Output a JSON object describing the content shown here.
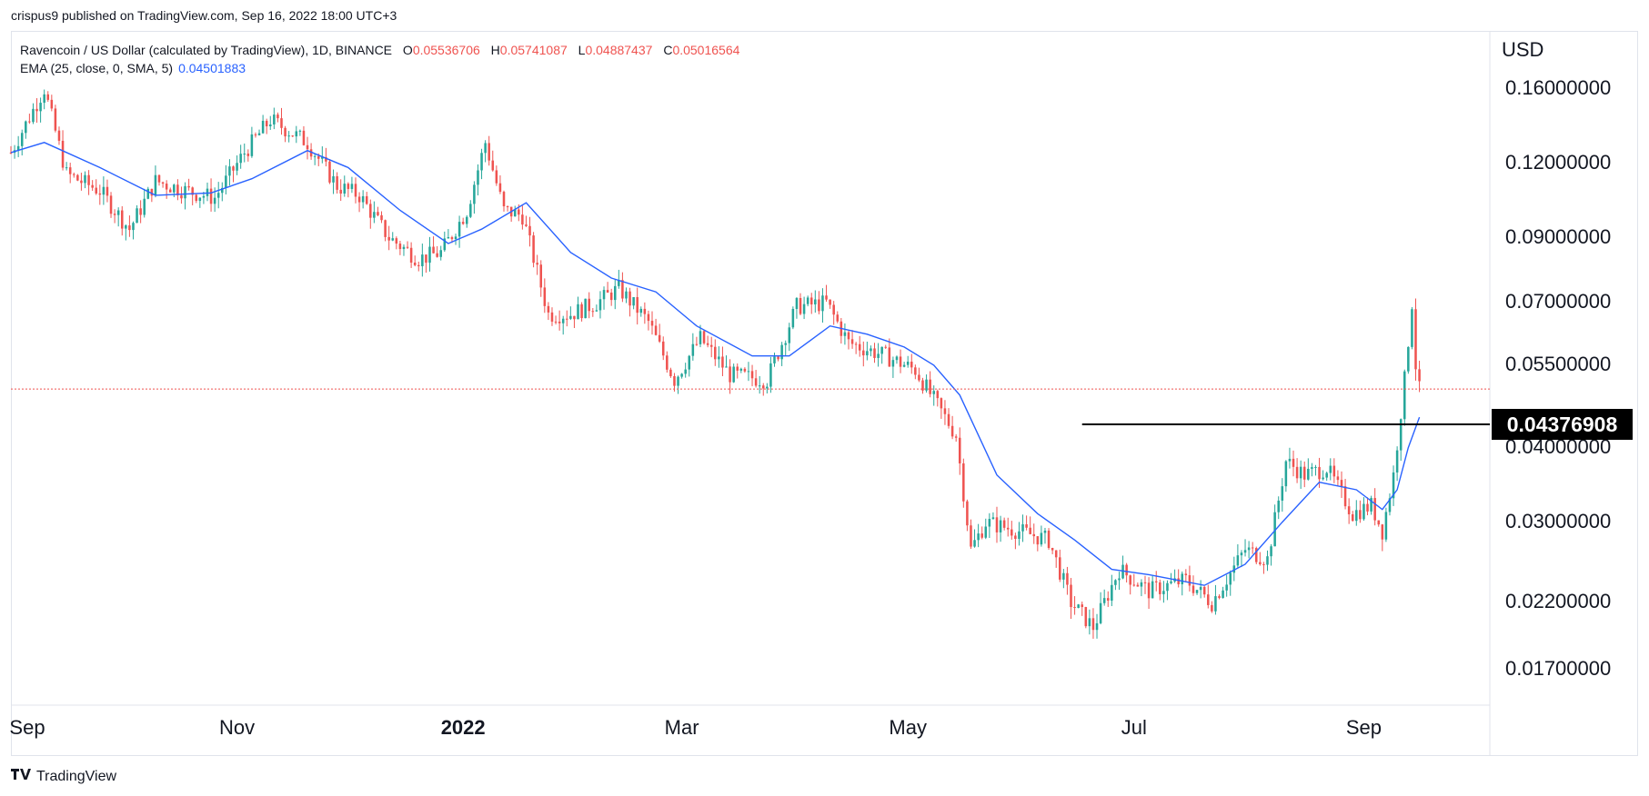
{
  "publisher_line": "crispus9 published on TradingView.com, Sep 16, 2022 18:00 UTC+3",
  "legend": {
    "symbol": "Ravencoin / US Dollar (calculated by TradingView), 1D, BINANCE",
    "open_key": "O",
    "open": "0.05536706",
    "high_key": "H",
    "high": "0.05741087",
    "low_key": "L",
    "low": "0.04887437",
    "close_key": "C",
    "close": "0.05016564",
    "ema_label": "EMA (25, close, 0, SMA, 5)",
    "ema_value": "0.04501883"
  },
  "footer": {
    "brand": "TradingView",
    "logo_icon": "tradingview-logo-icon"
  },
  "colors": {
    "up": "#26a69a",
    "down": "#ef5350",
    "ema": "#2962ff",
    "support_line": "#000000",
    "current_price_line": "#ef5350"
  },
  "chart_data": {
    "type": "candlestick",
    "title": "Ravencoin / US Dollar (calculated by TradingView), 1D, BINANCE",
    "currency": "USD",
    "y_scale": "log",
    "y_ticks": [
      "0.16000000",
      "0.12000000",
      "0.09000000",
      "0.07000000",
      "0.05500000",
      "0.04000000",
      "0.03000000",
      "0.02200000",
      "0.01700000"
    ],
    "x_ticks": [
      "Sep",
      "Nov",
      "2022",
      "Mar",
      "May",
      "Jul",
      "Sep"
    ],
    "x_range": [
      "2021-09-01",
      "2022-10-05"
    ],
    "y_range": [
      0.0148,
      0.2
    ],
    "current_price": 0.05016564,
    "support_level": {
      "label": "0.04376908",
      "value": 0.04376908,
      "from": "2022-06-17",
      "to": "2022-10-05"
    },
    "close_path": [
      [
        "2021-09-01",
        0.125
      ],
      [
        "2021-09-10",
        0.16
      ],
      [
        "2021-09-16",
        0.115
      ],
      [
        "2021-09-25",
        0.108
      ],
      [
        "2021-10-03",
        0.093
      ],
      [
        "2021-10-10",
        0.112
      ],
      [
        "2021-10-18",
        0.108
      ],
      [
        "2021-10-26",
        0.105
      ],
      [
        "2021-11-03",
        0.125
      ],
      [
        "2021-11-10",
        0.142
      ],
      [
        "2021-11-20",
        0.13
      ],
      [
        "2021-11-28",
        0.11
      ],
      [
        "2021-12-04",
        0.106
      ],
      [
        "2021-12-12",
        0.09
      ],
      [
        "2021-12-20",
        0.083
      ],
      [
        "2021-12-26",
        0.085
      ],
      [
        "2022-01-02",
        0.1
      ],
      [
        "2022-01-07",
        0.13
      ],
      [
        "2022-01-12",
        0.1
      ],
      [
        "2022-01-17",
        0.098
      ],
      [
        "2022-01-24",
        0.067
      ],
      [
        "2022-01-30",
        0.067
      ],
      [
        "2022-02-06",
        0.07
      ],
      [
        "2022-02-12",
        0.074
      ],
      [
        "2022-02-20",
        0.065
      ],
      [
        "2022-02-27",
        0.052
      ],
      [
        "2022-03-06",
        0.061
      ],
      [
        "2022-03-14",
        0.053
      ],
      [
        "2022-03-24",
        0.052
      ],
      [
        "2022-04-01",
        0.069
      ],
      [
        "2022-04-09",
        0.07
      ],
      [
        "2022-04-15",
        0.06
      ],
      [
        "2022-04-25",
        0.057
      ],
      [
        "2022-05-03",
        0.054
      ],
      [
        "2022-05-10",
        0.046
      ],
      [
        "2022-05-14",
        0.042
      ],
      [
        "2022-05-18",
        0.027
      ],
      [
        "2022-05-22",
        0.03
      ],
      [
        "2022-05-31",
        0.029
      ],
      [
        "2022-06-08",
        0.028
      ],
      [
        "2022-06-14",
        0.022
      ],
      [
        "2022-06-20",
        0.02
      ],
      [
        "2022-06-27",
        0.025
      ],
      [
        "2022-07-05",
        0.023
      ],
      [
        "2022-07-15",
        0.024
      ],
      [
        "2022-07-22",
        0.022
      ],
      [
        "2022-07-31",
        0.027
      ],
      [
        "2022-08-06",
        0.026
      ],
      [
        "2022-08-11",
        0.038
      ],
      [
        "2022-08-16",
        0.036
      ],
      [
        "2022-08-22",
        0.037
      ],
      [
        "2022-08-29",
        0.031
      ],
      [
        "2022-09-03",
        0.032
      ],
      [
        "2022-09-06",
        0.029
      ],
      [
        "2022-09-09",
        0.036
      ],
      [
        "2022-09-12",
        0.052
      ],
      [
        "2022-09-14",
        0.07
      ],
      [
        "2022-09-15",
        0.055
      ],
      [
        "2022-09-16",
        0.05
      ]
    ],
    "ema_path": [
      [
        "2021-09-01",
        0.125
      ],
      [
        "2021-09-10",
        0.13
      ],
      [
        "2021-09-25",
        0.118
      ],
      [
        "2021-10-10",
        0.106
      ],
      [
        "2021-10-25",
        0.107
      ],
      [
        "2021-11-05",
        0.113
      ],
      [
        "2021-11-20",
        0.126
      ],
      [
        "2021-12-01",
        0.118
      ],
      [
        "2021-12-15",
        0.1
      ],
      [
        "2021-12-28",
        0.088
      ],
      [
        "2022-01-06",
        0.093
      ],
      [
        "2022-01-18",
        0.103
      ],
      [
        "2022-01-30",
        0.085
      ],
      [
        "2022-02-10",
        0.077
      ],
      [
        "2022-02-22",
        0.073
      ],
      [
        "2022-03-05",
        0.064
      ],
      [
        "2022-03-20",
        0.057
      ],
      [
        "2022-03-30",
        0.057
      ],
      [
        "2022-04-10",
        0.064
      ],
      [
        "2022-04-20",
        0.062
      ],
      [
        "2022-04-30",
        0.059
      ],
      [
        "2022-05-08",
        0.055
      ],
      [
        "2022-05-15",
        0.049
      ],
      [
        "2022-05-25",
        0.036
      ],
      [
        "2022-06-05",
        0.031
      ],
      [
        "2022-06-15",
        0.028
      ],
      [
        "2022-06-25",
        0.025
      ],
      [
        "2022-07-05",
        0.0245
      ],
      [
        "2022-07-20",
        0.0235
      ],
      [
        "2022-07-31",
        0.0255
      ],
      [
        "2022-08-10",
        0.03
      ],
      [
        "2022-08-20",
        0.035
      ],
      [
        "2022-08-30",
        0.034
      ],
      [
        "2022-09-06",
        0.0315
      ],
      [
        "2022-09-10",
        0.034
      ],
      [
        "2022-09-13",
        0.04
      ],
      [
        "2022-09-16",
        0.045
      ]
    ]
  }
}
